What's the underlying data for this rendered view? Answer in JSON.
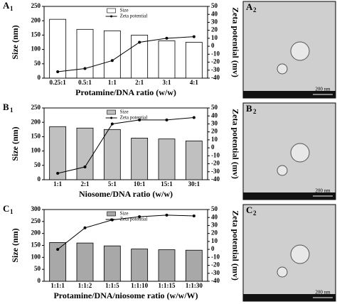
{
  "panels": [
    {
      "label": "A",
      "sub": "1"
    },
    {
      "label": "B",
      "sub": "1"
    },
    {
      "label": "C",
      "sub": "1"
    }
  ],
  "images": [
    {
      "label": "A",
      "sub": "2",
      "scale": "200 nm"
    },
    {
      "label": "B",
      "sub": "2",
      "scale": "200 nm"
    },
    {
      "label": "C",
      "sub": "2",
      "scale": "200 nm"
    }
  ],
  "chart_data": [
    {
      "type": "bar",
      "x_label": "Protamine/DNA ratio (w/w)",
      "y_label": "Size (nm)",
      "y2_label": "Zeta potential (mv)",
      "categories": [
        "0.25:1",
        "0.5:1",
        "1:1",
        "2:1",
        "3:1",
        "4:1"
      ],
      "series": [
        {
          "name": "Size",
          "color": "#ffffff",
          "values": [
            205,
            170,
            165,
            150,
            130,
            125
          ]
        },
        {
          "name": "Zeta potential",
          "color": "#000000",
          "axis": "y2",
          "values": [
            -32,
            -28,
            -18,
            5,
            10,
            12
          ]
        }
      ],
      "ylim": [
        0,
        250
      ],
      "yticks": [
        0,
        50,
        100,
        150,
        200,
        250
      ],
      "y2lim": [
        -40,
        50
      ],
      "y2ticks": [
        -40,
        -30,
        -20,
        -10,
        0,
        10,
        20,
        30,
        40,
        50
      ]
    },
    {
      "type": "bar",
      "x_label": "Niosome/DNA ratio (w/w)",
      "y_label": "Size (nm)",
      "y2_label": "Zeta potential (mv)",
      "categories": [
        "1:1",
        "2:1",
        "5:1",
        "10:1",
        "15:1",
        "30:1"
      ],
      "series": [
        {
          "name": "Size",
          "color": "#c0c0c0",
          "values": [
            185,
            180,
            175,
            145,
            142,
            135
          ]
        },
        {
          "name": "Zeta potential",
          "color": "#000000",
          "axis": "y2",
          "values": [
            -32,
            -24,
            30,
            35,
            35,
            38
          ]
        }
      ],
      "ylim": [
        0,
        250
      ],
      "yticks": [
        0,
        50,
        100,
        150,
        200,
        250
      ],
      "y2lim": [
        -40,
        50
      ],
      "y2ticks": [
        -40,
        -30,
        -20,
        -10,
        0,
        10,
        20,
        30,
        40,
        50
      ]
    },
    {
      "type": "bar",
      "x_label": "Protamine/DNA/niosome ratio (w/w/W)",
      "y_label": "Size (nm)",
      "y2_label": "Zeta potential (mv)",
      "categories": [
        "1:1:1",
        "1:1:2",
        "1:1:5",
        "1:1:10",
        "1:1:15",
        "1:1:30"
      ],
      "series": [
        {
          "name": "Size",
          "color": "#a8a8a8",
          "values": [
            162,
            160,
            148,
            135,
            132,
            130
          ]
        },
        {
          "name": "Zeta potential",
          "color": "#000000",
          "axis": "y2",
          "values": [
            0,
            27,
            37,
            41,
            43,
            42
          ]
        }
      ],
      "ylim": [
        0,
        300
      ],
      "yticks": [
        0,
        50,
        100,
        150,
        200,
        250,
        300
      ],
      "y2lim": [
        -40,
        50
      ],
      "y2ticks": [
        -40,
        -30,
        -20,
        -10,
        0,
        10,
        20,
        30,
        40,
        50
      ]
    }
  ]
}
